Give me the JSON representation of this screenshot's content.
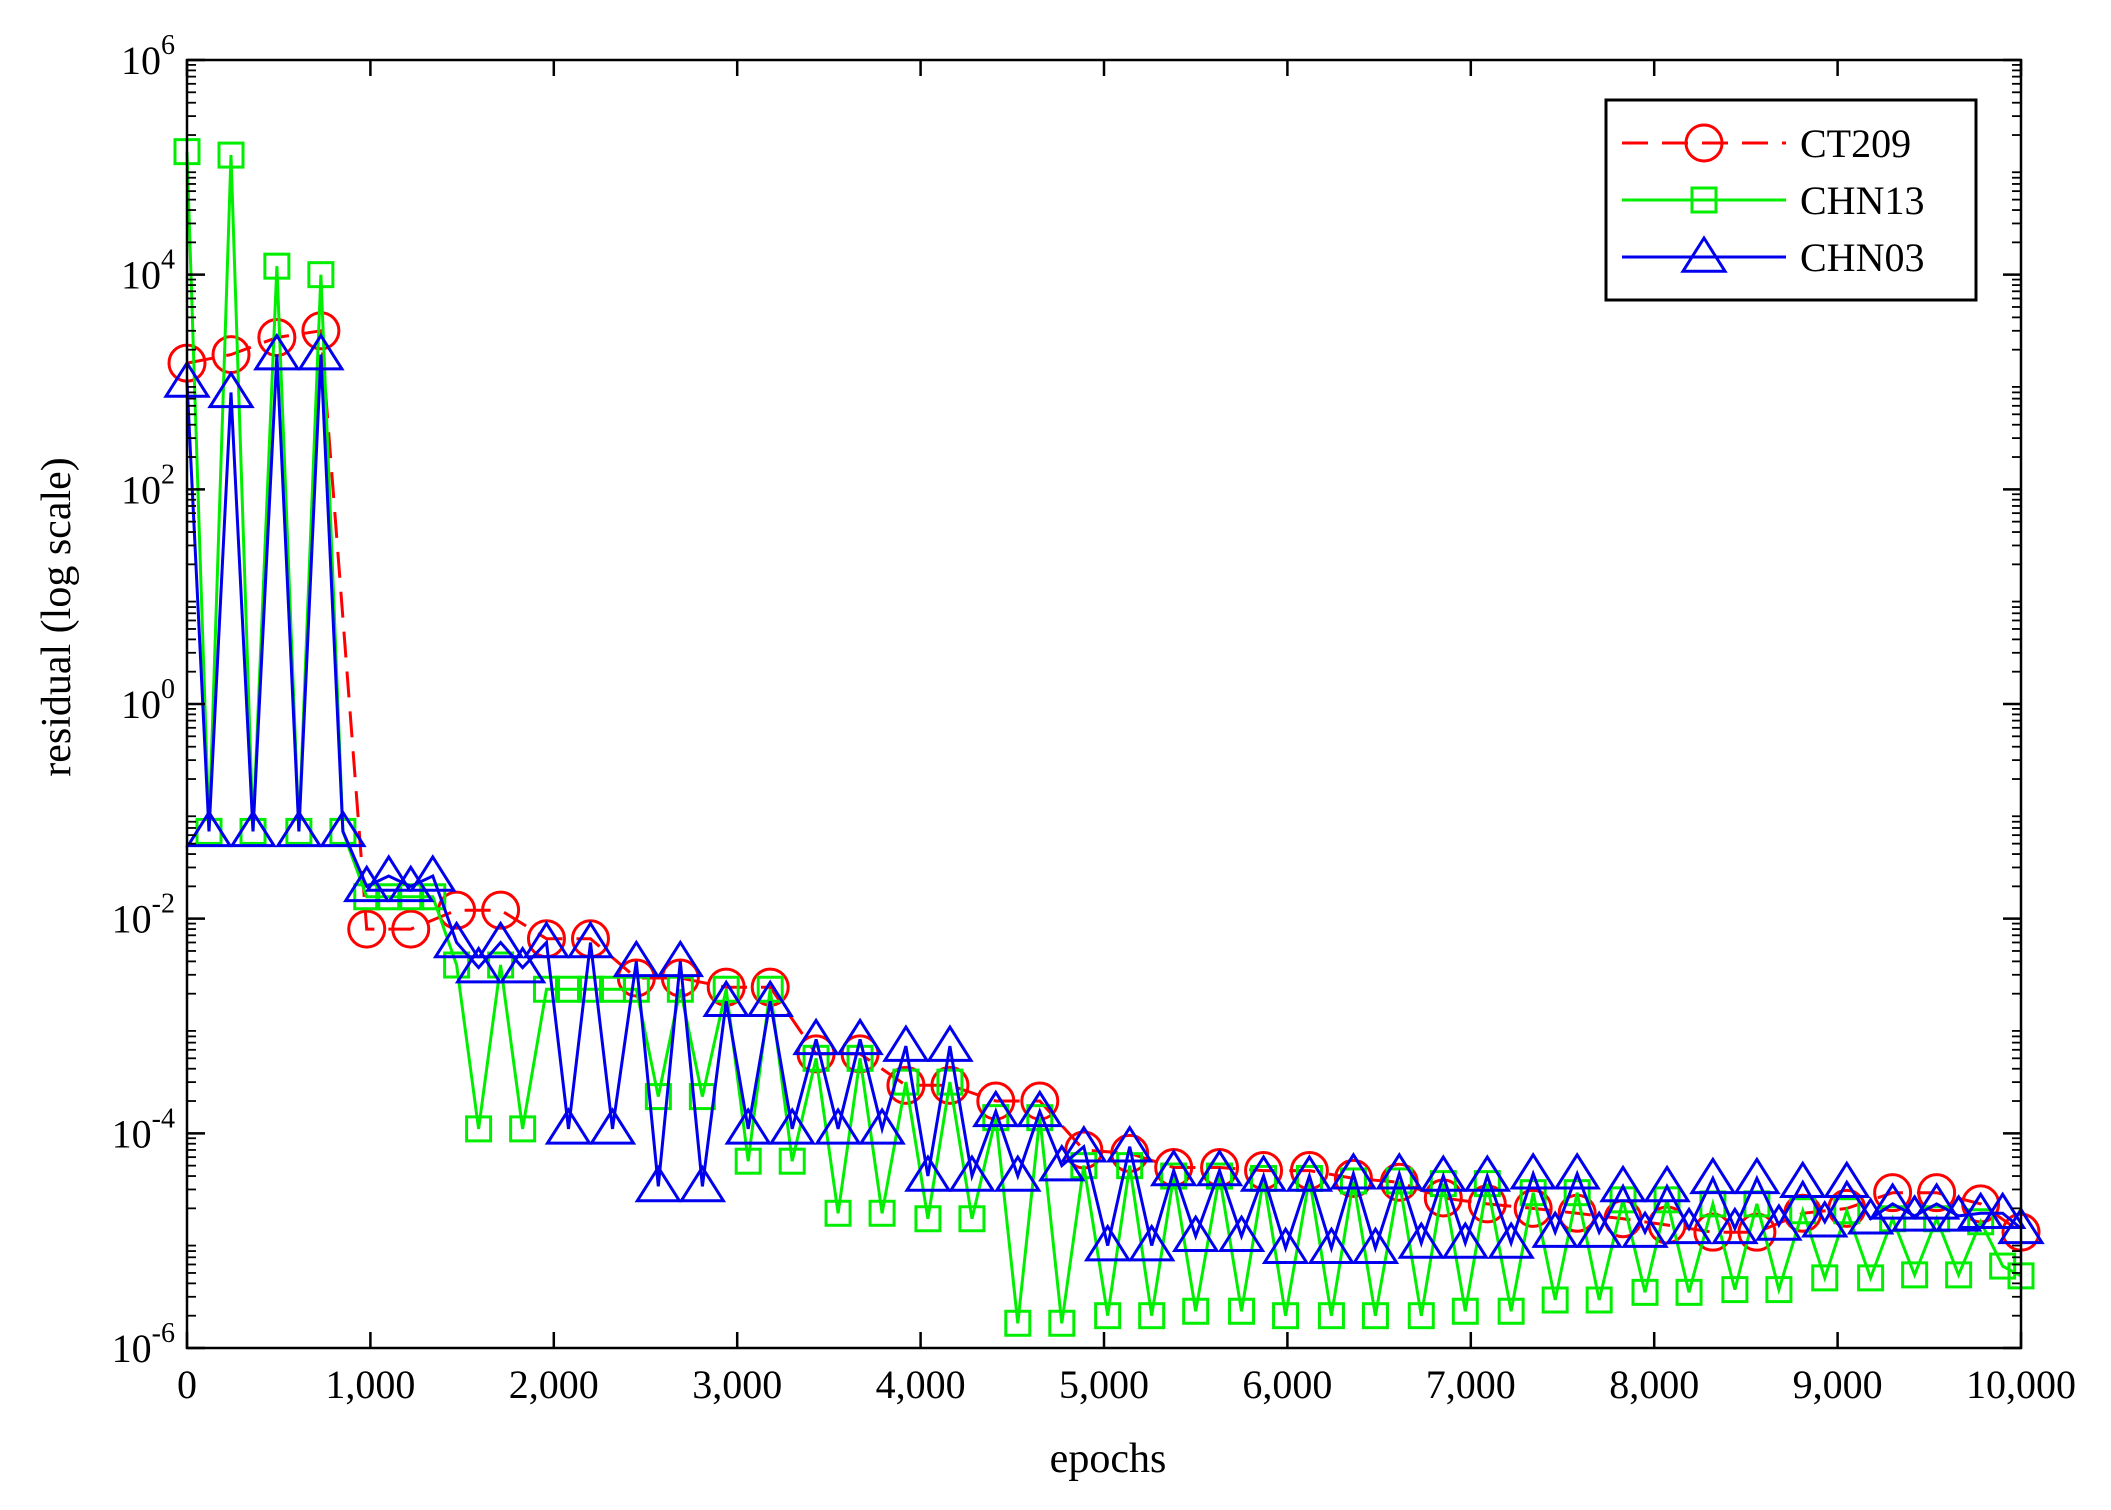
{
  "chart_data": {
    "type": "line",
    "title": "",
    "xlabel": "epochs",
    "ylabel": "residual (log scale)",
    "xlim": [
      0,
      10000
    ],
    "ylim": [
      1e-06,
      1000000.0
    ],
    "yscale": "log",
    "grid": false,
    "legend_position": "top-right",
    "x_ticks": [
      {
        "value": 0,
        "label": "0"
      },
      {
        "value": 1000,
        "label": "1,000"
      },
      {
        "value": 2000,
        "label": "2,000"
      },
      {
        "value": 3000,
        "label": "3,000"
      },
      {
        "value": 4000,
        "label": "4,000"
      },
      {
        "value": 5000,
        "label": "5,000"
      },
      {
        "value": 6000,
        "label": "6,000"
      },
      {
        "value": 7000,
        "label": "7,000"
      },
      {
        "value": 8000,
        "label": "8,000"
      },
      {
        "value": 9000,
        "label": "9,000"
      },
      {
        "value": 10000,
        "label": "10,000"
      }
    ],
    "y_ticks": [
      {
        "exp": -6,
        "base": "10",
        "sup": "-6"
      },
      {
        "exp": -4,
        "base": "10",
        "sup": "-4"
      },
      {
        "exp": -2,
        "base": "10",
        "sup": "-2"
      },
      {
        "exp": 0,
        "base": "10",
        "sup": "0"
      },
      {
        "exp": 2,
        "base": "10",
        "sup": "2"
      },
      {
        "exp": 4,
        "base": "10",
        "sup": "4"
      },
      {
        "exp": 6,
        "base": "10",
        "sup": "6"
      }
    ],
    "series": [
      {
        "name": "CT209",
        "color": "#ff0000",
        "dash": "dashed",
        "marker": "circle",
        "x": [
          0,
          240,
          490,
          730,
          980,
          1220,
          1470,
          1710,
          1960,
          2200,
          2450,
          2690,
          2940,
          3180,
          3430,
          3670,
          3920,
          4160,
          4410,
          4650,
          4890,
          5140,
          5380,
          5630,
          5870,
          6120,
          6360,
          6610,
          6850,
          7090,
          7340,
          7580,
          7830,
          8070,
          8320,
          8560,
          8810,
          9050,
          9300,
          9540,
          9780,
          10000
        ],
        "y": [
          1500,
          1800,
          2600,
          3000,
          0.008,
          0.008,
          0.012,
          0.012,
          0.0065,
          0.0065,
          0.0028,
          0.0028,
          0.0023,
          0.0023,
          0.00055,
          0.00055,
          0.00028,
          0.00028,
          0.0002,
          0.0002,
          7e-05,
          6.5e-05,
          4.8e-05,
          4.8e-05,
          4.5e-05,
          4.5e-05,
          3.8e-05,
          3.5e-05,
          2.5e-05,
          2.2e-05,
          2e-05,
          1.8e-05,
          1.6e-05,
          1.4e-05,
          1.2e-05,
          1.2e-05,
          1.8e-05,
          2e-05,
          2.8e-05,
          2.8e-05,
          2.2e-05,
          1.2e-05
        ]
      },
      {
        "name": "CHN13",
        "color": "#00ee00",
        "dash": "solid",
        "marker": "square",
        "x": [
          0,
          120,
          240,
          360,
          490,
          610,
          730,
          850,
          980,
          1100,
          1220,
          1340,
          1470,
          1590,
          1710,
          1830,
          1960,
          2080,
          2200,
          2320,
          2450,
          2570,
          2690,
          2810,
          2940,
          3060,
          3180,
          3300,
          3430,
          3550,
          3670,
          3790,
          3920,
          4040,
          4160,
          4280,
          4410,
          4530,
          4650,
          4770,
          4890,
          5020,
          5140,
          5260,
          5380,
          5500,
          5630,
          5750,
          5870,
          5990,
          6120,
          6240,
          6360,
          6480,
          6610,
          6730,
          6850,
          6970,
          7090,
          7220,
          7340,
          7460,
          7580,
          7700,
          7830,
          7950,
          8070,
          8190,
          8320,
          8440,
          8560,
          8680,
          8810,
          8930,
          9050,
          9180,
          9300,
          9420,
          9540,
          9660,
          9780,
          9900,
          10000
        ],
        "y": [
          140000,
          0.065,
          130000,
          0.065,
          12000,
          0.065,
          10000,
          0.065,
          0.016,
          0.016,
          0.016,
          0.016,
          0.0037,
          0.00011,
          0.0037,
          0.00011,
          0.0022,
          0.0022,
          0.0022,
          0.0022,
          0.0022,
          0.00022,
          0.0022,
          0.00022,
          0.0022,
          5.5e-05,
          0.0022,
          5.5e-05,
          0.0005,
          1.8e-05,
          0.0005,
          1.8e-05,
          0.0003,
          1.6e-05,
          0.0003,
          1.6e-05,
          0.00014,
          1.7e-06,
          0.00014,
          1.7e-06,
          5e-05,
          2e-06,
          5e-05,
          2e-06,
          4e-05,
          2.2e-06,
          4e-05,
          2.2e-06,
          3.8e-05,
          2e-06,
          3.8e-05,
          2e-06,
          3.6e-05,
          2e-06,
          3.6e-05,
          2e-06,
          3.4e-05,
          2.2e-06,
          3.4e-05,
          2.2e-06,
          2.8e-05,
          2.8e-06,
          2.8e-05,
          2.8e-06,
          2.4e-05,
          3.3e-06,
          2.4e-05,
          3.3e-06,
          2.2e-05,
          3.5e-06,
          2.2e-05,
          3.5e-06,
          1.9e-05,
          4.5e-06,
          1.9e-05,
          4.5e-06,
          1.6e-05,
          4.8e-06,
          1.6e-05,
          4.8e-06,
          1.5e-05,
          5.8e-06,
          4.7e-06
        ]
      },
      {
        "name": "CHN03",
        "color": "#0000ee",
        "dash": "solid",
        "marker": "triangle",
        "x": [
          0,
          120,
          240,
          360,
          490,
          610,
          730,
          850,
          980,
          1100,
          1220,
          1340,
          1470,
          1590,
          1710,
          1830,
          1960,
          2080,
          2200,
          2320,
          2450,
          2570,
          2690,
          2810,
          2940,
          3060,
          3180,
          3300,
          3430,
          3550,
          3670,
          3790,
          3920,
          4040,
          4160,
          4280,
          4410,
          4530,
          4650,
          4770,
          4890,
          5020,
          5140,
          5260,
          5380,
          5500,
          5630,
          5750,
          5870,
          5990,
          6120,
          6240,
          6360,
          6480,
          6610,
          6730,
          6850,
          6970,
          7090,
          7220,
          7340,
          7460,
          7580,
          7700,
          7830,
          7950,
          8070,
          8190,
          8320,
          8440,
          8560,
          8680,
          8810,
          8930,
          9050,
          9180,
          9300,
          9420,
          9540,
          9660,
          9780,
          9900,
          10000
        ],
        "y": [
          1000,
          0.065,
          800,
          0.065,
          1800,
          0.065,
          1800,
          0.065,
          0.02,
          0.025,
          0.02,
          0.025,
          0.006,
          0.0035,
          0.006,
          0.0035,
          0.006,
          0.00011,
          0.006,
          0.00011,
          0.004,
          3.2e-05,
          0.004,
          3.2e-05,
          0.0017,
          0.00011,
          0.0017,
          0.00011,
          0.00075,
          0.00011,
          0.00075,
          0.00011,
          0.00065,
          4e-05,
          0.00065,
          4e-05,
          0.00016,
          4e-05,
          0.00016,
          5e-05,
          7.5e-05,
          9e-06,
          7.5e-05,
          9e-06,
          4.5e-05,
          1.1e-05,
          4.5e-05,
          1.1e-05,
          4e-05,
          8.5e-06,
          4e-05,
          8.5e-06,
          4.2e-05,
          8.5e-06,
          4.2e-05,
          9.5e-06,
          4e-05,
          9.5e-06,
          4e-05,
          9.5e-06,
          4.2e-05,
          1.2e-05,
          4.2e-05,
          1.2e-05,
          3.2e-05,
          1.2e-05,
          3.2e-05,
          1.3e-05,
          3.8e-05,
          1.3e-05,
          3.8e-05,
          1.4e-05,
          3.5e-05,
          1.5e-05,
          3.5e-05,
          1.6e-05,
          2.2e-05,
          1.7e-05,
          2.2e-05,
          1.7e-05,
          1.8e-05,
          1.8e-05,
          1.3e-05
        ]
      }
    ]
  }
}
